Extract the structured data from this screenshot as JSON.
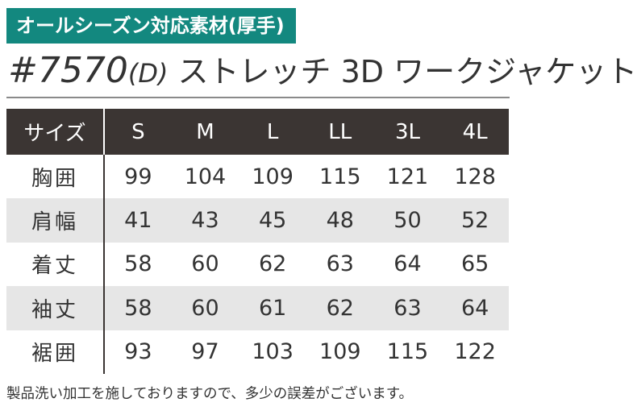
{
  "badge": {
    "text": "オールシーズン対応素材(厚手)",
    "color": "#13887f"
  },
  "title": {
    "number": "#7570",
    "suffix": "(D)",
    "name": " ストレッチ 3D ワークジャケット"
  },
  "table": {
    "header_label": "サイズ",
    "sizes": [
      "S",
      "M",
      "L",
      "LL",
      "3L",
      "4L"
    ],
    "rows": [
      {
        "label": "胸囲",
        "values": [
          "99",
          "104",
          "109",
          "115",
          "121",
          "128"
        ]
      },
      {
        "label": "肩幅",
        "values": [
          "41",
          "43",
          "45",
          "48",
          "50",
          "52"
        ]
      },
      {
        "label": "着丈",
        "values": [
          "58",
          "60",
          "62",
          "63",
          "64",
          "65"
        ]
      },
      {
        "label": "袖丈",
        "values": [
          "58",
          "60",
          "61",
          "62",
          "63",
          "64"
        ]
      },
      {
        "label": "裾囲",
        "values": [
          "93",
          "97",
          "103",
          "109",
          "115",
          "122"
        ]
      }
    ],
    "header_color": "#3b3533",
    "shade_color": "#e6e6e6"
  },
  "note": "製品洗い加工を施しておりますので、多少の誤差がございます。"
}
